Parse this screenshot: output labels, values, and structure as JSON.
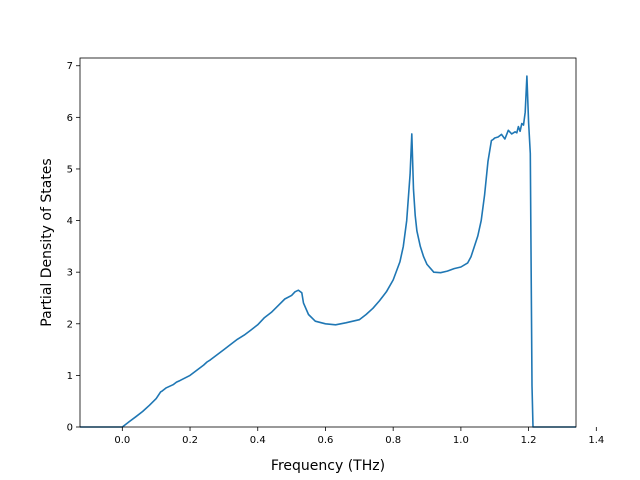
{
  "chart_data": {
    "type": "line",
    "title": "",
    "xlabel": "Frequency (THz)",
    "ylabel": "Partial Density of States",
    "xlim": [
      -0.125,
      1.34
    ],
    "ylim": [
      0,
      7.15
    ],
    "xticks": [
      0.0,
      0.2,
      0.4,
      0.6,
      0.8,
      1.0,
      1.2,
      1.4
    ],
    "xtick_labels": [
      "0.0",
      "0.2",
      "0.4",
      "0.6",
      "0.8",
      "1.0",
      "1.2",
      "1.4"
    ],
    "yticks": [
      0,
      1,
      2,
      3,
      4,
      5,
      6,
      7
    ],
    "ytick_labels": [
      "0",
      "1",
      "2",
      "3",
      "4",
      "5",
      "6",
      "7"
    ],
    "grid": false,
    "legend": "none",
    "series": [
      {
        "color": "#1f77b4",
        "x": [
          -0.125,
          0.0,
          0.02,
          0.04,
          0.06,
          0.08,
          0.1,
          0.113,
          0.118,
          0.13,
          0.15,
          0.16,
          0.17,
          0.2,
          0.22,
          0.24,
          0.25,
          0.26,
          0.28,
          0.3,
          0.32,
          0.34,
          0.36,
          0.38,
          0.4,
          0.42,
          0.44,
          0.46,
          0.48,
          0.5,
          0.51,
          0.52,
          0.53,
          0.535,
          0.55,
          0.57,
          0.6,
          0.63,
          0.66,
          0.7,
          0.72,
          0.74,
          0.76,
          0.78,
          0.8,
          0.82,
          0.83,
          0.84,
          0.85,
          0.855,
          0.86,
          0.865,
          0.87,
          0.88,
          0.89,
          0.9,
          0.92,
          0.94,
          0.96,
          0.98,
          1.0,
          1.02,
          1.03,
          1.04,
          1.05,
          1.06,
          1.07,
          1.08,
          1.09,
          1.095,
          1.1,
          1.11,
          1.12,
          1.13,
          1.14,
          1.15,
          1.16,
          1.165,
          1.17,
          1.175,
          1.18,
          1.185,
          1.19,
          1.195,
          1.2,
          1.205,
          1.21,
          1.213,
          1.215,
          1.22,
          1.34
        ],
        "y": [
          0,
          0,
          0.1,
          0.2,
          0.3,
          0.42,
          0.55,
          0.68,
          0.7,
          0.76,
          0.82,
          0.87,
          0.9,
          1.0,
          1.1,
          1.2,
          1.26,
          1.3,
          1.4,
          1.5,
          1.6,
          1.7,
          1.78,
          1.88,
          1.98,
          2.12,
          2.22,
          2.35,
          2.48,
          2.55,
          2.62,
          2.65,
          2.6,
          2.4,
          2.18,
          2.05,
          2.0,
          1.98,
          2.02,
          2.08,
          2.18,
          2.3,
          2.45,
          2.62,
          2.85,
          3.2,
          3.5,
          4.0,
          4.9,
          5.68,
          4.6,
          4.1,
          3.8,
          3.5,
          3.3,
          3.15,
          3.0,
          2.99,
          3.02,
          3.07,
          3.1,
          3.18,
          3.3,
          3.5,
          3.7,
          4.0,
          4.5,
          5.15,
          5.55,
          5.57,
          5.6,
          5.62,
          5.67,
          5.58,
          5.75,
          5.68,
          5.72,
          5.7,
          5.82,
          5.73,
          5.88,
          5.85,
          6.1,
          6.8,
          5.9,
          5.3,
          0.8,
          0.0,
          0,
          0,
          0
        ]
      }
    ]
  }
}
